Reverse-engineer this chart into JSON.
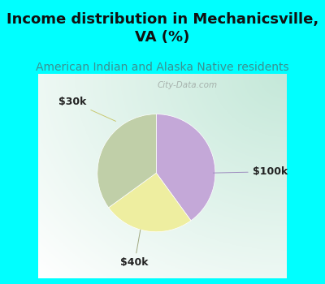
{
  "title": "Income distribution in Mechanicsville,\nVA (%)",
  "subtitle": "American Indian and Alaska Native residents",
  "slices": [
    {
      "label": "$100k",
      "value": 40,
      "color": "#C4A8D8"
    },
    {
      "label": "$30k",
      "value": 25,
      "color": "#EEEEA0"
    },
    {
      "label": "$40k",
      "value": 35,
      "color": "#C0CFA8"
    }
  ],
  "startangle": 90,
  "title_bg_color": "#00FFFF",
  "title_fontsize": 13,
  "subtitle_color": "#3A9090",
  "subtitle_fontsize": 10,
  "label_fontsize": 9,
  "watermark": "City-Data.com",
  "border_color": "#00FFFF",
  "border_thickness": 8
}
